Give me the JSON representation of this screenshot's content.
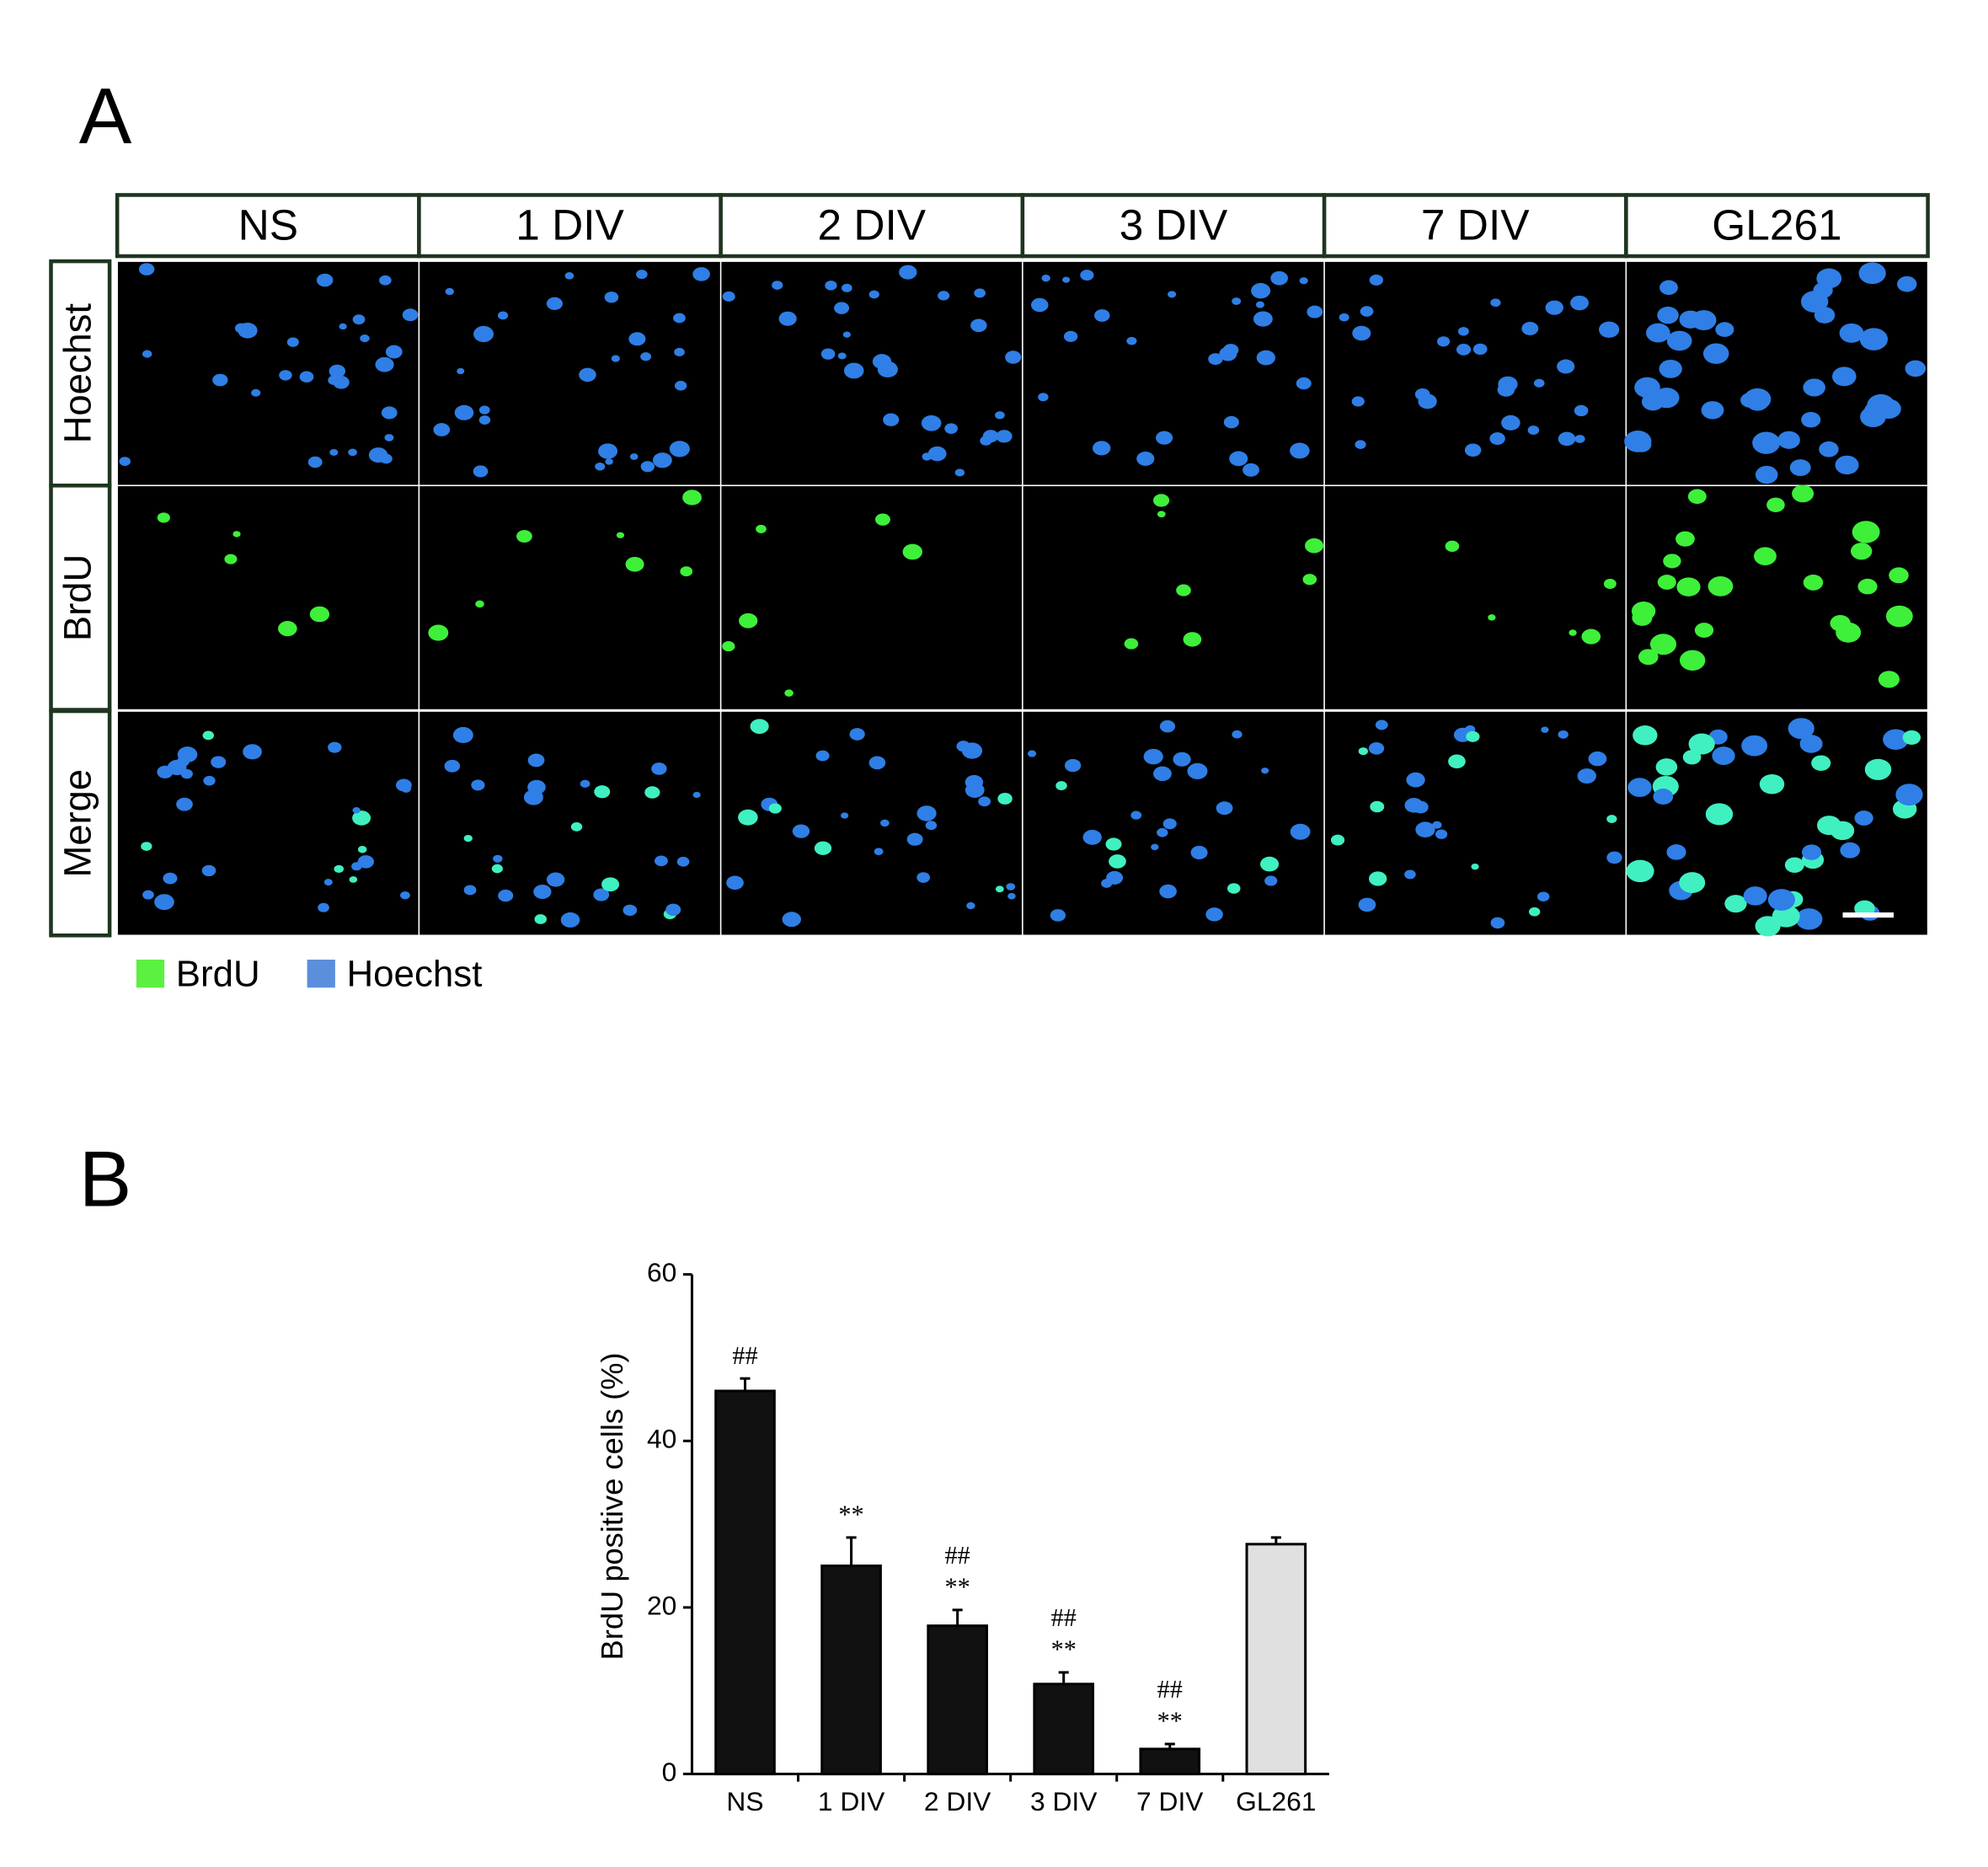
{
  "panel_a": {
    "label": "A",
    "columns": [
      "NS",
      "1 DIV",
      "2 DIV",
      "3 DIV",
      "7 DIV",
      "GL261"
    ],
    "rows": [
      "Hoechst",
      "BrdU",
      "Merge"
    ],
    "legend": [
      {
        "name": "BrdU",
        "color": "#5cf040"
      },
      {
        "name": "Hoechst",
        "color": "#5b8fdc"
      }
    ]
  },
  "chart_data": {
    "type": "bar",
    "panel_label": "B",
    "y_label": "BrdU positive cells (%)",
    "categories": [
      "NS",
      "1 DIV",
      "2 DIV",
      "3 DIV",
      "7 DIV",
      "GL261"
    ],
    "values": [
      46,
      25,
      17.8,
      10.8,
      3,
      27.6
    ],
    "errors": [
      1.5,
      3.4,
      1.9,
      1.4,
      0.6,
      0.8
    ],
    "colors": [
      "#111111",
      "#111111",
      "#111111",
      "#111111",
      "#111111",
      "#e0e0e0"
    ],
    "annotations": [
      [
        "##"
      ],
      [
        "**"
      ],
      [
        "##",
        "**"
      ],
      [
        "##",
        "**"
      ],
      [
        "##",
        "**"
      ],
      []
    ],
    "ylim": [
      0,
      60
    ],
    "yticks": [
      0,
      20,
      40,
      60
    ]
  }
}
